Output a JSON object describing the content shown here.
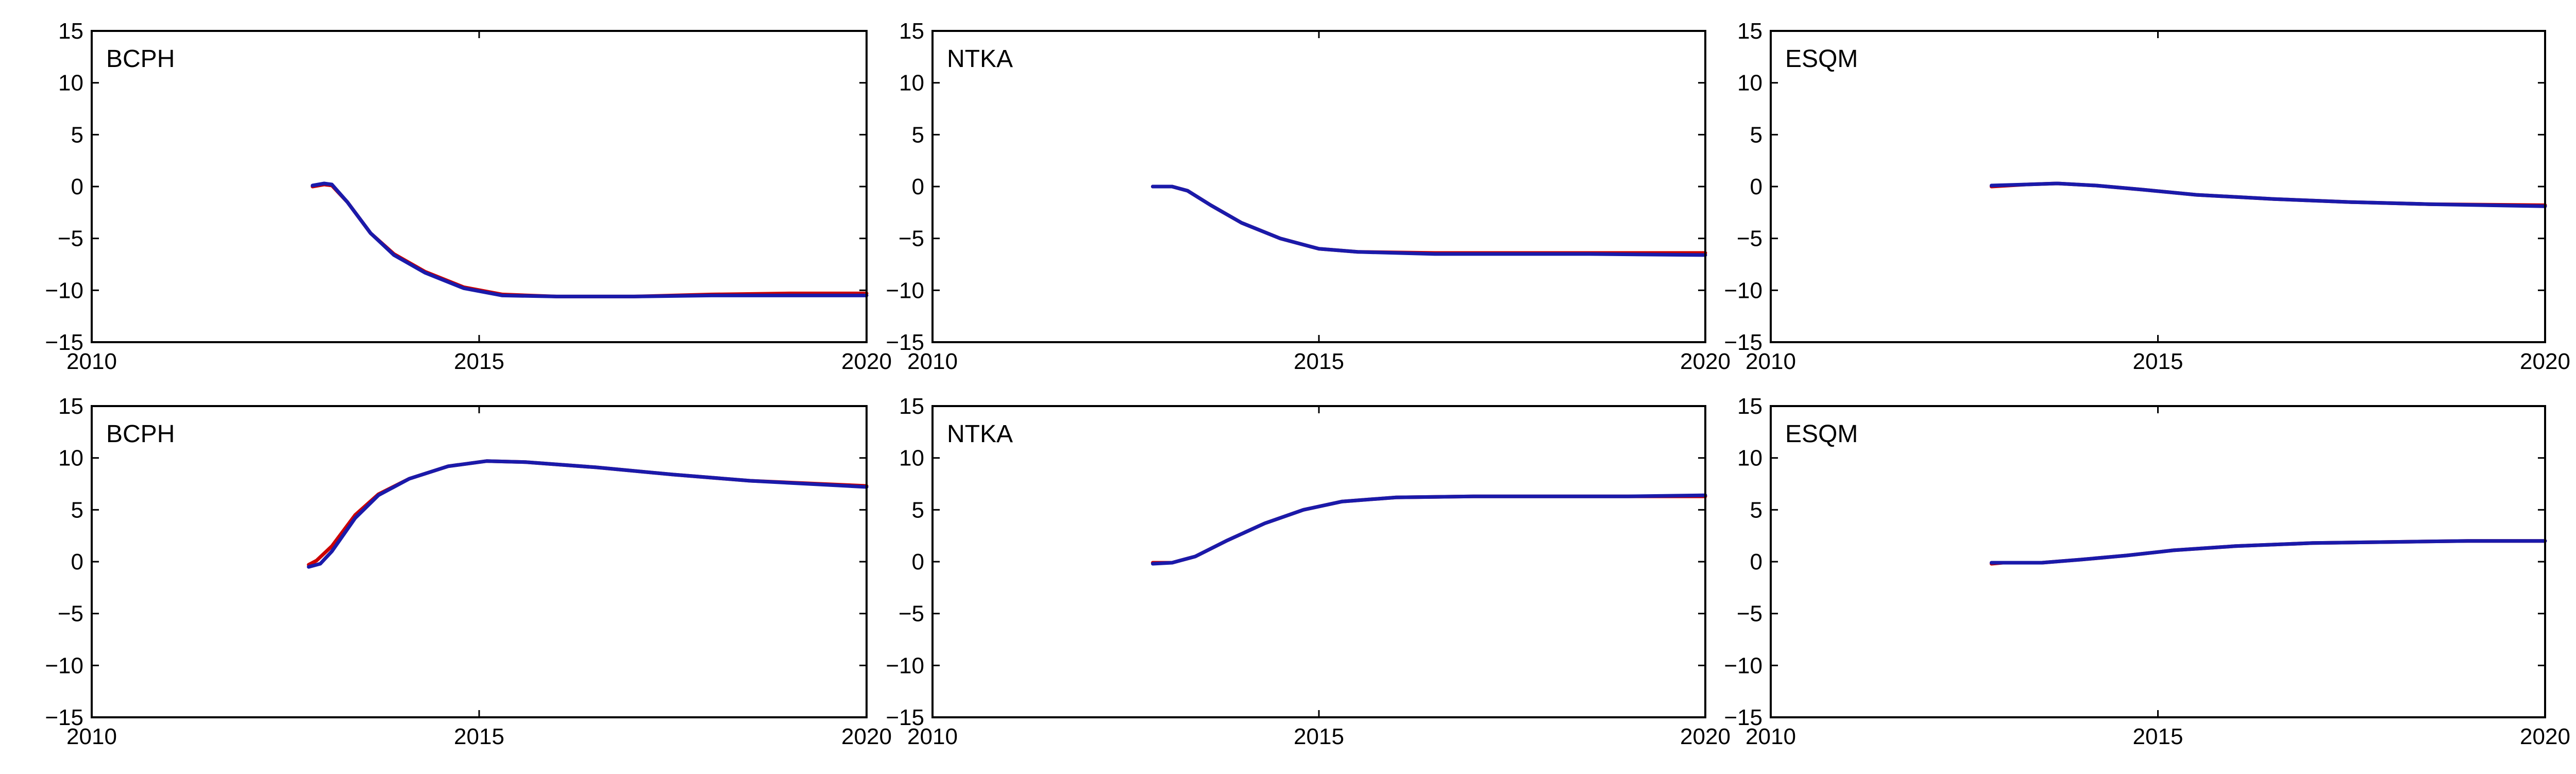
{
  "chart_data": [
    {
      "type": "line",
      "label": "BCPH",
      "xlim": [
        2010,
        2020
      ],
      "ylim": [
        -15,
        15
      ],
      "xticks": [
        2010,
        2015,
        2020
      ],
      "yticks": [
        -15,
        -10,
        -5,
        0,
        5,
        10,
        15
      ],
      "grid": false,
      "series": [
        {
          "color": "#cc0000",
          "points": [
            [
              2012.85,
              0
            ],
            [
              2013.0,
              0.2
            ],
            [
              2013.1,
              0.1
            ],
            [
              2013.3,
              -1.5
            ],
            [
              2013.6,
              -4.5
            ],
            [
              2013.9,
              -6.5
            ],
            [
              2014.3,
              -8.2
            ],
            [
              2014.8,
              -9.7
            ],
            [
              2015.3,
              -10.4
            ],
            [
              2016.0,
              -10.6
            ],
            [
              2017.0,
              -10.6
            ],
            [
              2018.0,
              -10.4
            ],
            [
              2019.0,
              -10.3
            ],
            [
              2020.0,
              -10.3
            ]
          ]
        },
        {
          "color": "#1a1aaa",
          "points": [
            [
              2012.85,
              0.1
            ],
            [
              2013.0,
              0.3
            ],
            [
              2013.1,
              0.2
            ],
            [
              2013.3,
              -1.5
            ],
            [
              2013.6,
              -4.5
            ],
            [
              2013.9,
              -6.6
            ],
            [
              2014.3,
              -8.3
            ],
            [
              2014.8,
              -9.8
            ],
            [
              2015.3,
              -10.5
            ],
            [
              2016.0,
              -10.6
            ],
            [
              2017.0,
              -10.6
            ],
            [
              2018.0,
              -10.5
            ],
            [
              2019.0,
              -10.5
            ],
            [
              2020.0,
              -10.5
            ]
          ]
        }
      ]
    },
    {
      "type": "line",
      "label": "NTKA",
      "xlim": [
        2010,
        2020
      ],
      "ylim": [
        -15,
        15
      ],
      "xticks": [
        2010,
        2015,
        2020
      ],
      "yticks": [
        -15,
        -10,
        -5,
        0,
        5,
        10,
        15
      ],
      "grid": false,
      "series": [
        {
          "color": "#cc0000",
          "points": [
            [
              2012.85,
              0
            ],
            [
              2013.1,
              0
            ],
            [
              2013.3,
              -0.4
            ],
            [
              2013.6,
              -1.8
            ],
            [
              2014.0,
              -3.5
            ],
            [
              2014.5,
              -5.0
            ],
            [
              2015.0,
              -6.0
            ],
            [
              2015.5,
              -6.3
            ],
            [
              2016.5,
              -6.4
            ],
            [
              2017.5,
              -6.4
            ],
            [
              2018.5,
              -6.4
            ],
            [
              2020.0,
              -6.4
            ]
          ]
        },
        {
          "color": "#1a1aaa",
          "points": [
            [
              2012.85,
              0
            ],
            [
              2013.1,
              0
            ],
            [
              2013.3,
              -0.4
            ],
            [
              2013.6,
              -1.8
            ],
            [
              2014.0,
              -3.5
            ],
            [
              2014.5,
              -5.0
            ],
            [
              2015.0,
              -6.0
            ],
            [
              2015.5,
              -6.3
            ],
            [
              2016.5,
              -6.5
            ],
            [
              2017.5,
              -6.5
            ],
            [
              2018.5,
              -6.5
            ],
            [
              2020.0,
              -6.6
            ]
          ]
        }
      ]
    },
    {
      "type": "line",
      "label": "ESQM",
      "xlim": [
        2010,
        2020
      ],
      "ylim": [
        -15,
        15
      ],
      "xticks": [
        2010,
        2015,
        2020
      ],
      "yticks": [
        -15,
        -10,
        -5,
        0,
        5,
        10,
        15
      ],
      "grid": false,
      "series": [
        {
          "color": "#cc0000",
          "points": [
            [
              2012.85,
              0
            ],
            [
              2013.3,
              0.2
            ],
            [
              2013.7,
              0.3
            ],
            [
              2014.2,
              0.1
            ],
            [
              2014.8,
              -0.3
            ],
            [
              2015.5,
              -0.8
            ],
            [
              2016.5,
              -1.2
            ],
            [
              2017.5,
              -1.5
            ],
            [
              2018.5,
              -1.7
            ],
            [
              2020.0,
              -1.8
            ]
          ]
        },
        {
          "color": "#1a1aaa",
          "points": [
            [
              2012.85,
              0.1
            ],
            [
              2013.3,
              0.2
            ],
            [
              2013.7,
              0.3
            ],
            [
              2014.2,
              0.1
            ],
            [
              2014.8,
              -0.3
            ],
            [
              2015.5,
              -0.8
            ],
            [
              2016.5,
              -1.2
            ],
            [
              2017.5,
              -1.5
            ],
            [
              2018.5,
              -1.7
            ],
            [
              2020.0,
              -1.9
            ]
          ]
        }
      ]
    },
    {
      "type": "line",
      "label": "BCPH",
      "xlim": [
        2010,
        2020
      ],
      "ylim": [
        -15,
        15
      ],
      "xticks": [
        2010,
        2015,
        2020
      ],
      "yticks": [
        -15,
        -10,
        -5,
        0,
        5,
        10,
        15
      ],
      "grid": false,
      "series": [
        {
          "color": "#cc0000",
          "points": [
            [
              2012.8,
              -0.3
            ],
            [
              2012.9,
              0.1
            ],
            [
              2013.1,
              1.5
            ],
            [
              2013.4,
              4.5
            ],
            [
              2013.7,
              6.5
            ],
            [
              2014.1,
              8.0
            ],
            [
              2014.6,
              9.2
            ],
            [
              2015.1,
              9.7
            ],
            [
              2015.6,
              9.6
            ],
            [
              2016.5,
              9.1
            ],
            [
              2017.5,
              8.4
            ],
            [
              2018.5,
              7.8
            ],
            [
              2020.0,
              7.3
            ]
          ]
        },
        {
          "color": "#1a1aaa",
          "points": [
            [
              2012.8,
              -0.5
            ],
            [
              2012.95,
              -0.2
            ],
            [
              2013.1,
              1.0
            ],
            [
              2013.4,
              4.2
            ],
            [
              2013.7,
              6.4
            ],
            [
              2014.1,
              8.0
            ],
            [
              2014.6,
              9.2
            ],
            [
              2015.1,
              9.7
            ],
            [
              2015.6,
              9.6
            ],
            [
              2016.5,
              9.1
            ],
            [
              2017.5,
              8.4
            ],
            [
              2018.5,
              7.8
            ],
            [
              2020.0,
              7.2
            ]
          ]
        }
      ]
    },
    {
      "type": "line",
      "label": "NTKA",
      "xlim": [
        2010,
        2020
      ],
      "ylim": [
        -15,
        15
      ],
      "xticks": [
        2010,
        2015,
        2020
      ],
      "yticks": [
        -15,
        -10,
        -5,
        0,
        5,
        10,
        15
      ],
      "grid": false,
      "series": [
        {
          "color": "#cc0000",
          "points": [
            [
              2012.85,
              -0.1
            ],
            [
              2013.1,
              -0.1
            ],
            [
              2013.4,
              0.5
            ],
            [
              2013.8,
              2.0
            ],
            [
              2014.3,
              3.7
            ],
            [
              2014.8,
              5.0
            ],
            [
              2015.3,
              5.8
            ],
            [
              2016.0,
              6.2
            ],
            [
              2017.0,
              6.3
            ],
            [
              2018.0,
              6.3
            ],
            [
              2019.0,
              6.3
            ],
            [
              2020.0,
              6.3
            ]
          ]
        },
        {
          "color": "#1a1aaa",
          "points": [
            [
              2012.85,
              -0.2
            ],
            [
              2013.1,
              -0.1
            ],
            [
              2013.4,
              0.5
            ],
            [
              2013.8,
              2.0
            ],
            [
              2014.3,
              3.7
            ],
            [
              2014.8,
              5.0
            ],
            [
              2015.3,
              5.8
            ],
            [
              2016.0,
              6.2
            ],
            [
              2017.0,
              6.3
            ],
            [
              2018.0,
              6.3
            ],
            [
              2019.0,
              6.3
            ],
            [
              2020.0,
              6.4
            ]
          ]
        }
      ]
    },
    {
      "type": "line",
      "label": "ESQM",
      "xlim": [
        2010,
        2020
      ],
      "ylim": [
        -15,
        15
      ],
      "xticks": [
        2010,
        2015,
        2020
      ],
      "yticks": [
        -15,
        -10,
        -5,
        0,
        5,
        10,
        15
      ],
      "grid": false,
      "series": [
        {
          "color": "#cc0000",
          "points": [
            [
              2012.85,
              -0.2
            ],
            [
              2013.0,
              -0.1
            ],
            [
              2013.5,
              -0.1
            ],
            [
              2014.0,
              0.2
            ],
            [
              2014.6,
              0.6
            ],
            [
              2015.2,
              1.1
            ],
            [
              2016.0,
              1.5
            ],
            [
              2017.0,
              1.8
            ],
            [
              2018.0,
              1.9
            ],
            [
              2019.0,
              2.0
            ],
            [
              2020.0,
              2.0
            ]
          ]
        },
        {
          "color": "#1a1aaa",
          "points": [
            [
              2012.85,
              -0.1
            ],
            [
              2013.0,
              -0.1
            ],
            [
              2013.5,
              -0.1
            ],
            [
              2014.0,
              0.2
            ],
            [
              2014.6,
              0.6
            ],
            [
              2015.2,
              1.1
            ],
            [
              2016.0,
              1.5
            ],
            [
              2017.0,
              1.8
            ],
            [
              2018.0,
              1.9
            ],
            [
              2019.0,
              2.0
            ],
            [
              2020.0,
              2.0
            ]
          ]
        }
      ]
    }
  ]
}
